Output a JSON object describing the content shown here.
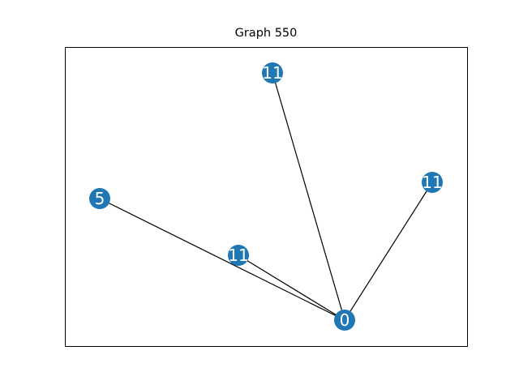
{
  "title": "Graph 550",
  "colors": {
    "node": "#1f77b4",
    "edge": "#000000",
    "node_label": "#ffffff",
    "frame": "#000000"
  },
  "nodes": [
    {
      "id": "n0",
      "label": "0"
    },
    {
      "id": "n1",
      "label": "11"
    },
    {
      "id": "n2",
      "label": "11"
    },
    {
      "id": "n3",
      "label": "5"
    },
    {
      "id": "n4",
      "label": "11"
    }
  ],
  "edges": [
    {
      "source": "n0",
      "target": "n1"
    },
    {
      "source": "n0",
      "target": "n2"
    },
    {
      "source": "n0",
      "target": "n3"
    },
    {
      "source": "n0",
      "target": "n4"
    }
  ]
}
